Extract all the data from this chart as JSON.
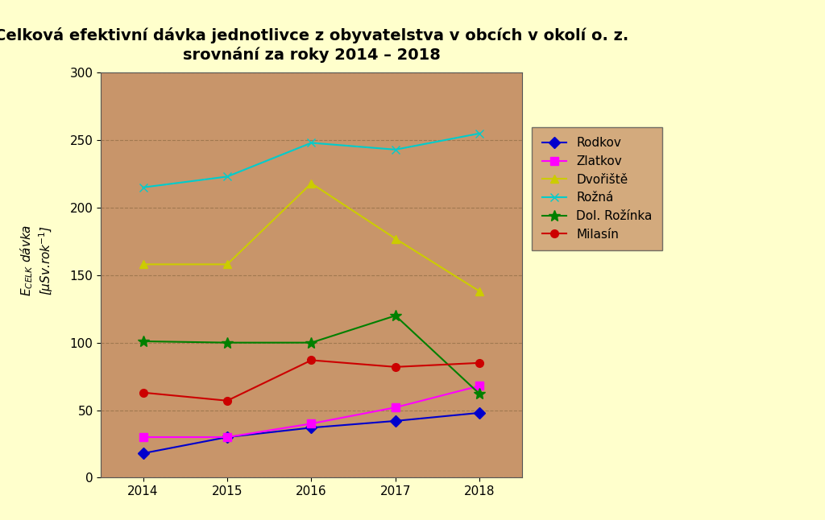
{
  "title_line1": "Celková efektivní dávka jednotlivce z obyvatelstva v obcích v okolí o. z.",
  "title_line2": "srovnání za roky 2014 – 2018",
  "ylabel_main": "E",
  "ylabel_sub": "CELK",
  "ylabel_rest": " dávka\n[μSv.rok⁻¹]",
  "years": [
    2014,
    2015,
    2016,
    2017,
    2018
  ],
  "series": {
    "Rodkov": {
      "values": [
        18,
        30,
        37,
        42,
        48
      ],
      "color": "#0000CC",
      "marker": "D",
      "lw": 1.5
    },
    "Zlatkov": {
      "values": [
        30,
        30,
        40,
        52,
        68
      ],
      "color": "#FF00FF",
      "marker": "s",
      "lw": 1.5
    },
    "Dvořiště": {
      "values": [
        158,
        158,
        218,
        177,
        138
      ],
      "color": "#CCCC00",
      "marker": "^",
      "lw": 1.5
    },
    "Rožná": {
      "values": [
        215,
        223,
        248,
        243,
        255
      ],
      "color": "#00CCCC",
      "marker": "x",
      "lw": 1.5
    },
    "Dol. Rožínka": {
      "values": [
        101,
        100,
        100,
        120,
        62
      ],
      "color": "#008000",
      "marker": "*",
      "lw": 1.5
    },
    "Milasín": {
      "values": [
        63,
        57,
        87,
        82,
        85
      ],
      "color": "#CC0000",
      "marker": "o",
      "lw": 1.5
    }
  },
  "ylim": [
    0,
    300
  ],
  "yticks": [
    0,
    50,
    100,
    150,
    200,
    250,
    300
  ],
  "plot_bg": "#C8956A",
  "outer_bg": "#FFFFCC",
  "legend_bg": "#C8956A",
  "grid_color": "#A07850",
  "title_fontsize": 14,
  "tick_fontsize": 11,
  "legend_fontsize": 11
}
